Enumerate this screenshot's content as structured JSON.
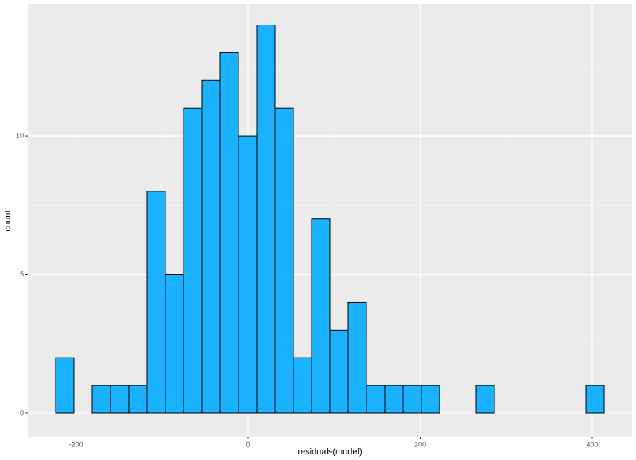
{
  "chart_data": {
    "type": "histogram",
    "x_label": "residuals(model)",
    "y_label": "count",
    "bins": [
      -223.6,
      -202.35,
      -181.1,
      -159.85,
      -138.6,
      -117.35,
      -96.1,
      -74.85,
      -53.6,
      -32.35,
      -11.1,
      10.15,
      31.4,
      52.65,
      73.9,
      95.15,
      116.4,
      137.65,
      158.9,
      180.15,
      201.4,
      222.65,
      243.9,
      265.15,
      286.4,
      307.65,
      328.9,
      350.15,
      371.4,
      392.65,
      413.9
    ],
    "values": [
      2,
      0,
      1,
      1,
      1,
      8,
      5,
      11,
      12,
      13,
      10,
      14,
      11,
      2,
      7,
      3,
      4,
      1,
      1,
      1,
      1,
      0,
      0,
      1,
      0,
      0,
      0,
      0,
      0,
      1
    ],
    "color": "#1ab2ff",
    "edge_color": "#000000",
    "xlim": [
      -255.9,
      446.2
    ],
    "xticks": [
      -200,
      0,
      200,
      400
    ],
    "minor_xticks": [
      -100,
      100,
      300
    ],
    "ylim": [
      -0.86,
      14.76
    ],
    "yticks": [
      0,
      5,
      10
    ],
    "minor_yticks": [
      2.5,
      7.5,
      12.5
    ],
    "grid": true
  }
}
